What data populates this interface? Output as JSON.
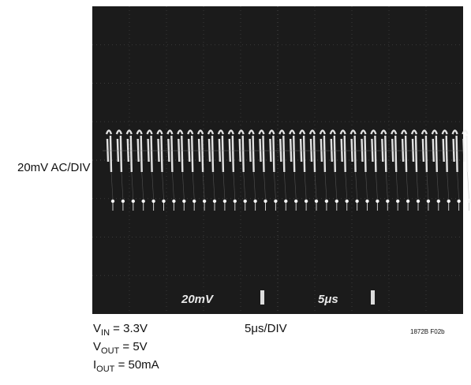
{
  "screen": {
    "readouts": [
      "20mV",
      "5μs"
    ]
  },
  "y_label": "20mV AC/DIV",
  "x_label": "5μs/DIV",
  "figure_id": "1872B F02b",
  "conditions": [
    {
      "symbol": "V",
      "subscript": "IN",
      "value": " = 3.3V"
    },
    {
      "symbol": "V",
      "subscript": "OUT",
      "value": " = 5V"
    },
    {
      "symbol": "I",
      "subscript": "OUT",
      "value": " = 50mA"
    }
  ]
}
